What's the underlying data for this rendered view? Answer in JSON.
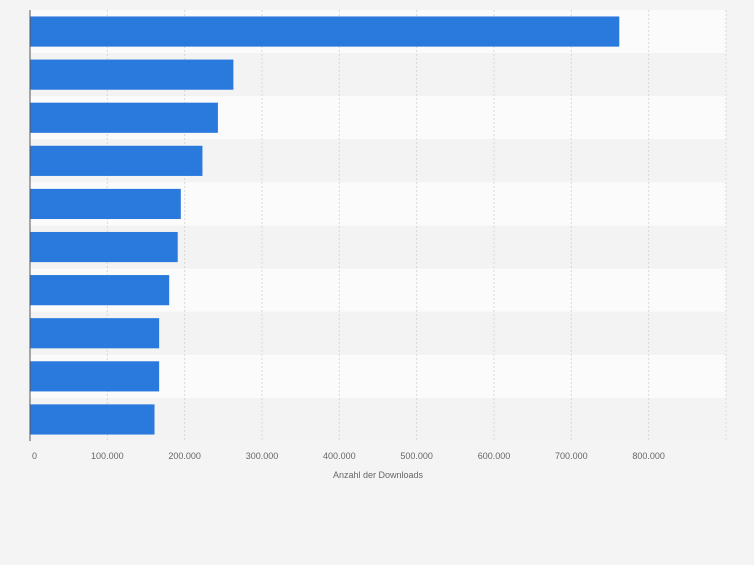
{
  "chart_data": {
    "type": "bar",
    "orientation": "horizontal",
    "categories": [
      "",
      "",
      "",
      "",
      "",
      "",
      "",
      "",
      "",
      ""
    ],
    "values": [
      762000,
      263000,
      243000,
      223000,
      195000,
      191000,
      180000,
      167000,
      167000,
      161000
    ],
    "title": "",
    "xlabel": "Anzahl der Downloads",
    "ylabel": "",
    "xlim": [
      0,
      900000
    ],
    "x_ticks": [
      0,
      100000,
      200000,
      300000,
      400000,
      500000,
      600000,
      700000,
      800000
    ],
    "x_tick_labels": [
      "0",
      "100.000",
      "200.000",
      "300.000",
      "400.000",
      "500.000",
      "600.000",
      "700.000",
      "800.000"
    ],
    "grid": "vertical",
    "legend": "none",
    "colors": {
      "bar": "#2a79dc",
      "band_light": "#fbfbfb",
      "band_dark": "#f3f3f3",
      "grid": "#d9d9d9",
      "axis": "#555555",
      "tick_text": "#666666",
      "background": "#f4f4f4"
    }
  }
}
